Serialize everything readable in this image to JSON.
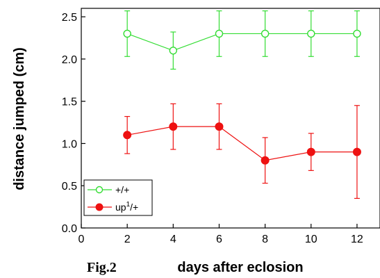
{
  "figure_label": "Fig.2",
  "chart_data": {
    "type": "line",
    "xlabel": "days after eclosion",
    "ylabel": "distance jumped (cm)",
    "xlim": [
      0,
      13
    ],
    "ylim": [
      0,
      2.6
    ],
    "x_ticks": [
      0,
      2,
      4,
      6,
      8,
      10,
      12
    ],
    "x_tick_labels": [
      "0",
      "2",
      "4",
      "6",
      "8",
      "10",
      "12"
    ],
    "y_ticks": [
      0,
      0.5,
      1.0,
      1.5,
      2.0,
      2.5
    ],
    "y_tick_labels": [
      "0.0",
      "0.5",
      "1.0",
      "1.5",
      "2.0",
      "2.5"
    ],
    "grid": false,
    "legend_placement": "bottom-left",
    "series": [
      {
        "name": "+/+",
        "color": "#33dd33",
        "marker": "open-circle",
        "x": [
          2,
          4,
          6,
          8,
          10,
          12
        ],
        "y": [
          2.3,
          2.1,
          2.3,
          2.3,
          2.3,
          2.3
        ],
        "error": [
          0.27,
          0.22,
          0.27,
          0.27,
          0.27,
          0.27
        ]
      },
      {
        "name": "up",
        "name_superscript": "1",
        "name_suffix": "/+",
        "color": "#ee1111",
        "marker": "filled-circle",
        "x": [
          2,
          4,
          6,
          8,
          10,
          12
        ],
        "y": [
          1.1,
          1.2,
          1.2,
          0.8,
          0.9,
          0.9
        ],
        "error": [
          0.22,
          0.27,
          0.27,
          0.27,
          0.22,
          0.55
        ]
      }
    ]
  }
}
